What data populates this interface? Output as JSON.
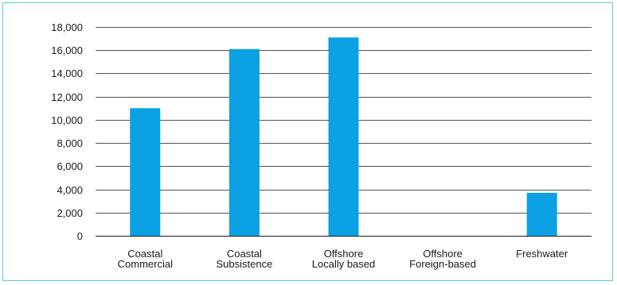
{
  "chart_data": {
    "type": "bar",
    "title": "",
    "xlabel": "",
    "ylabel": "",
    "categories": [
      [
        "Coastal",
        "Commercial"
      ],
      [
        "Coastal",
        "Subsistence"
      ],
      [
        "Offshore",
        "Locally based"
      ],
      [
        "Offshore",
        "Foreign-based"
      ],
      [
        "Freshwater"
      ]
    ],
    "values": [
      11000,
      16100,
      17100,
      0,
      3700
    ],
    "ylim": [
      0,
      18000
    ],
    "yticks": [
      0,
      2000,
      4000,
      6000,
      8000,
      10000,
      12000,
      14000,
      16000,
      18000
    ],
    "ytick_labels": [
      "0",
      "2,000",
      "4,000",
      "6,000",
      "8,000",
      "10,000",
      "12,000",
      "14,000",
      "16,000",
      "18,000"
    ],
    "grid": true,
    "legend": "none",
    "colors": {
      "bar": "#0ba0e3",
      "grid": "#1a1a1a",
      "axis": "#1a1a1a",
      "frame": "#5bc8e3"
    }
  }
}
